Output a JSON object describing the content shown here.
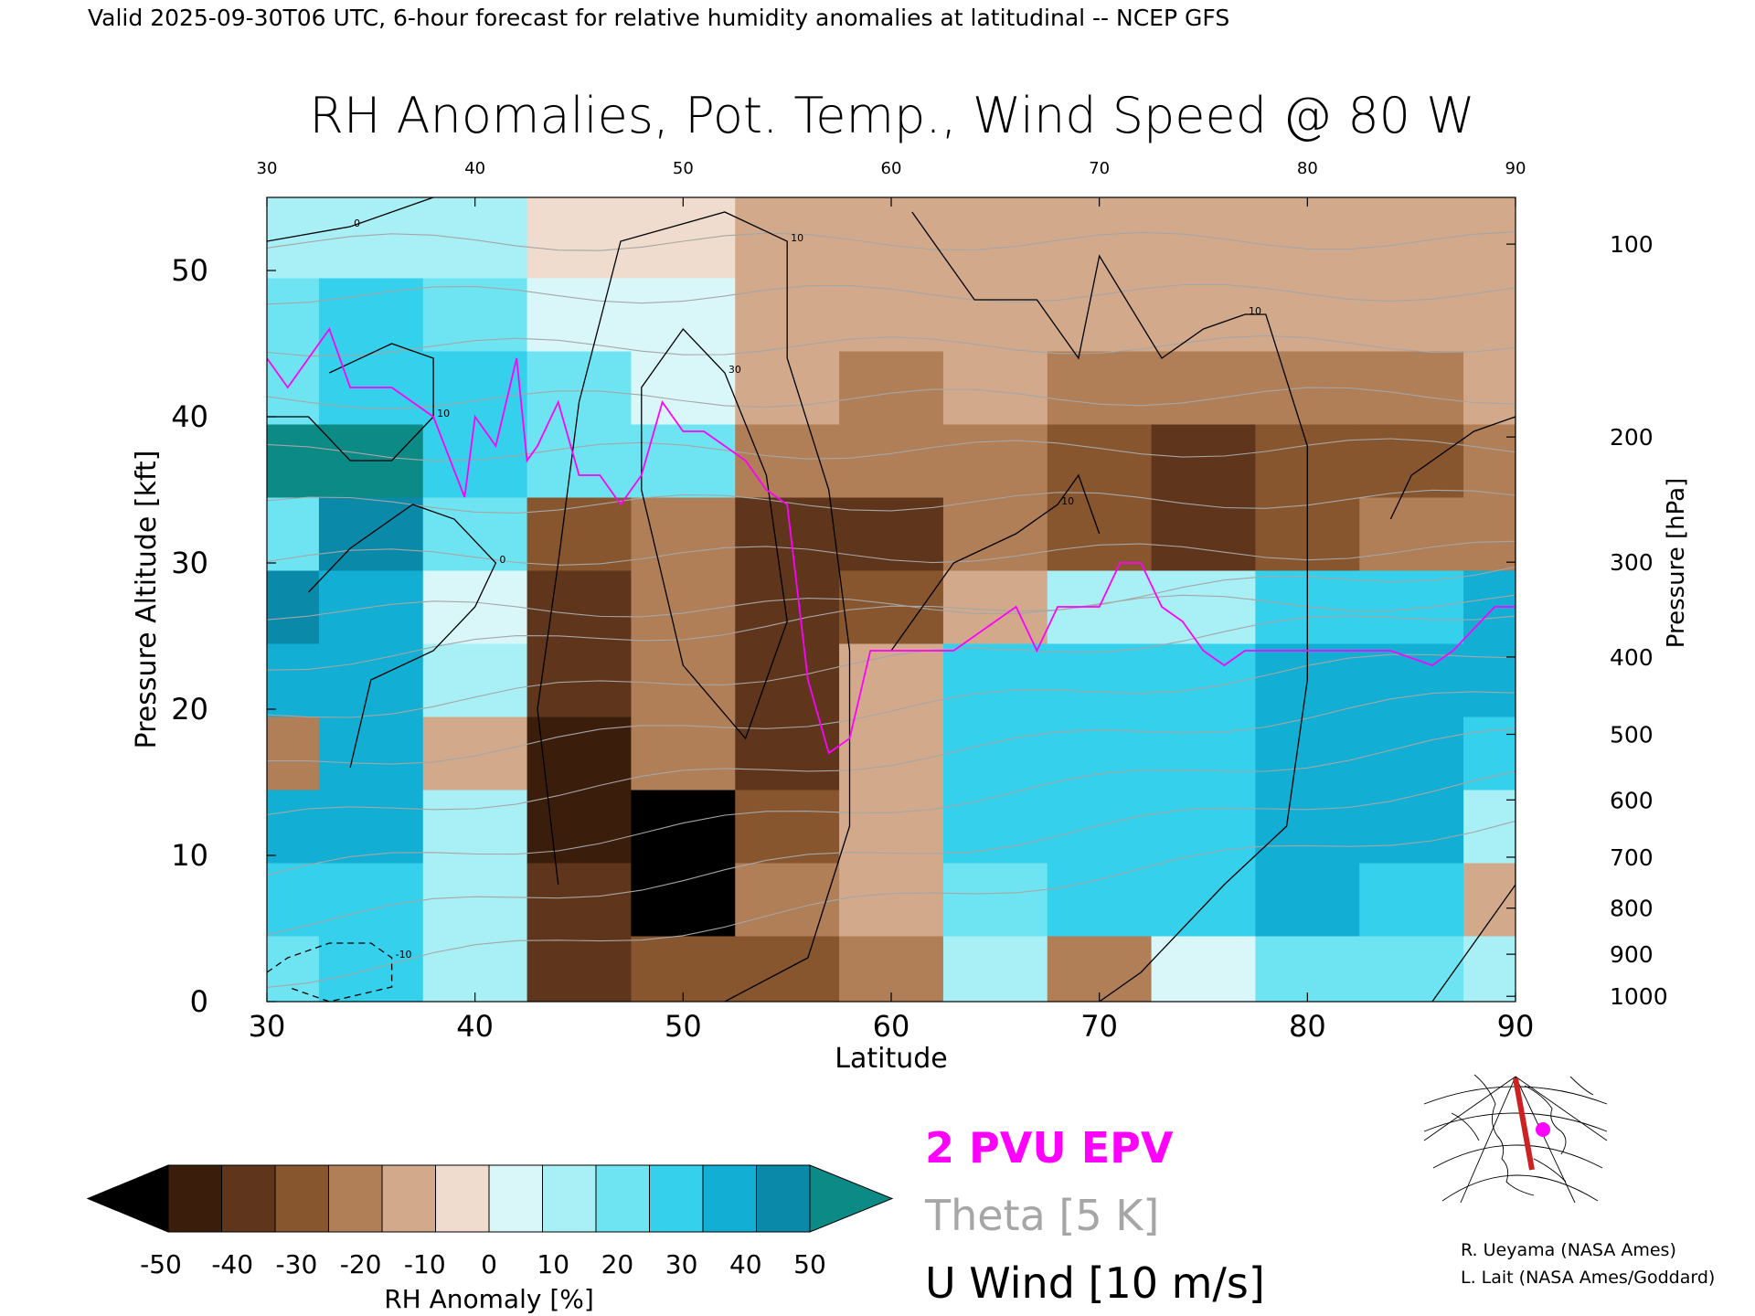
{
  "header": {
    "valid_line": "Valid 2025-09-30T06 UTC, 6-hour forecast for relative humidity anomalies at latitudinal -- NCEP GFS",
    "title": "RH Anomalies, Pot. Temp., Wind Speed @ 80 W"
  },
  "chart_data": {
    "type": "heatmap",
    "title": "RH Anomalies, Pot. Temp., Wind Speed @ 80 W",
    "xlabel": "Latitude",
    "ylabel_left": "Pressure Altitude [kft]",
    "ylabel_right": "Pressure [hPa]",
    "xlim": [
      30,
      90
    ],
    "ylim": [
      0,
      55
    ],
    "x_ticks": [
      "30",
      "40",
      "50",
      "60",
      "70",
      "80",
      "90"
    ],
    "x_ticks_top": [
      "30",
      "40",
      "50",
      "60",
      "70",
      "80",
      "90"
    ],
    "y_ticks": [
      "0",
      "10",
      "20",
      "30",
      "40",
      "50"
    ],
    "pressure_ticks": [
      {
        "label": "100",
        "hpa": 100
      },
      {
        "label": "200",
        "hpa": 200
      },
      {
        "label": "300",
        "hpa": 300
      },
      {
        "label": "400",
        "hpa": 400
      },
      {
        "label": "500",
        "hpa": 500
      },
      {
        "label": "600",
        "hpa": 600
      },
      {
        "label": "700",
        "hpa": 700
      },
      {
        "label": "800",
        "hpa": 800
      },
      {
        "label": "900",
        "hpa": 900
      },
      {
        "label": "1000",
        "hpa": 1000
      }
    ],
    "rh_anomaly_field": {
      "latitudes": [
        30,
        35,
        40,
        45,
        50,
        55,
        60,
        65,
        70,
        75,
        80,
        85,
        90
      ],
      "altitudes_kft": [
        2,
        7,
        12,
        17,
        22,
        27,
        32,
        37,
        42,
        47,
        52
      ],
      "values_percent": [
        [
          20,
          25,
          10,
          -35,
          -30,
          -30,
          -20,
          10,
          -25,
          5,
          20,
          20,
          10
        ],
        [
          30,
          30,
          15,
          -40,
          -55,
          -20,
          -15,
          20,
          25,
          25,
          35,
          30,
          -10
        ],
        [
          35,
          35,
          15,
          -45,
          -60,
          -30,
          -15,
          25,
          25,
          30,
          40,
          35,
          10
        ],
        [
          -20,
          40,
          -10,
          -45,
          -25,
          -40,
          -10,
          30,
          30,
          30,
          40,
          35,
          30
        ],
        [
          40,
          40,
          10,
          -40,
          -25,
          -35,
          -15,
          25,
          30,
          25,
          35,
          35,
          40
        ],
        [
          45,
          40,
          5,
          -40,
          -20,
          -40,
          -30,
          -10,
          15,
          15,
          30,
          25,
          40
        ],
        [
          20,
          45,
          20,
          -30,
          -20,
          -35,
          -35,
          -25,
          -30,
          -35,
          -30,
          -25,
          -20
        ],
        [
          55,
          55,
          30,
          20,
          20,
          -20,
          -25,
          -20,
          -30,
          -35,
          -30,
          -30,
          -25
        ],
        [
          20,
          30,
          25,
          20,
          5,
          -15,
          -20,
          -15,
          -20,
          -20,
          -25,
          -20,
          -15
        ],
        [
          20,
          25,
          20,
          0,
          5,
          -10,
          -15,
          -10,
          -15,
          -10,
          -10,
          -10,
          -10
        ],
        [
          10,
          15,
          10,
          -5,
          -5,
          -10,
          -10,
          -10,
          -10,
          -10,
          -10,
          -10,
          -10
        ]
      ]
    },
    "series": [
      {
        "name": "2 PVU EPV",
        "color": "#ff00ff",
        "points": [
          [
            30,
            44
          ],
          [
            31,
            42
          ],
          [
            33,
            46
          ],
          [
            34,
            42
          ],
          [
            36,
            42
          ],
          [
            37,
            41
          ],
          [
            38,
            40
          ],
          [
            39.5,
            34.5
          ],
          [
            40,
            40
          ],
          [
            41,
            38
          ],
          [
            42,
            44
          ],
          [
            42.5,
            37
          ],
          [
            43,
            38
          ],
          [
            44,
            41
          ],
          [
            45,
            36
          ],
          [
            46,
            36
          ],
          [
            47,
            34
          ],
          [
            48,
            36
          ],
          [
            49,
            41
          ],
          [
            50,
            39
          ],
          [
            51,
            39
          ],
          [
            52,
            38
          ],
          [
            53,
            37
          ],
          [
            54,
            35
          ],
          [
            55,
            34
          ],
          [
            56,
            22
          ],
          [
            57,
            17
          ],
          [
            58,
            18
          ],
          [
            59,
            24
          ],
          [
            61,
            24
          ],
          [
            63,
            24
          ],
          [
            65,
            26
          ],
          [
            66,
            27
          ],
          [
            67,
            24
          ],
          [
            68,
            27
          ],
          [
            69,
            27
          ],
          [
            70,
            27
          ],
          [
            71,
            30
          ],
          [
            72,
            30
          ],
          [
            73,
            27
          ],
          [
            74,
            26
          ],
          [
            75,
            24
          ],
          [
            76,
            23
          ],
          [
            77,
            24
          ],
          [
            78,
            24
          ],
          [
            80,
            24
          ],
          [
            82,
            24
          ],
          [
            84,
            24
          ],
          [
            86,
            23
          ],
          [
            87,
            24
          ],
          [
            89,
            27
          ],
          [
            90,
            27
          ]
        ]
      },
      {
        "name": "U Wind [10 m/s]",
        "color": "#000000",
        "contours": [
          {
            "label": "10",
            "points": [
              [
                44,
                8
              ],
              [
                43,
                20
              ],
              [
                44,
                30
              ],
              [
                45,
                41
              ],
              [
                47,
                52
              ],
              [
                52,
                54
              ],
              [
                55,
                52
              ],
              [
                55,
                44
              ],
              [
                57,
                35
              ],
              [
                58,
                24
              ],
              [
                58,
                12
              ],
              [
                56,
                3
              ],
              [
                52,
                0
              ]
            ]
          },
          {
            "label": "30",
            "points": [
              [
                49,
                29
              ],
              [
                50,
                23
              ],
              [
                53,
                18
              ],
              [
                55,
                26
              ],
              [
                54,
                36
              ],
              [
                52,
                43
              ],
              [
                50,
                46
              ],
              [
                48,
                42
              ],
              [
                48,
                35
              ],
              [
                49,
                29
              ]
            ]
          },
          {
            "label": "10",
            "points": [
              [
                61,
                54
              ],
              [
                62,
                52
              ],
              [
                64,
                48
              ],
              [
                67,
                48
              ],
              [
                69,
                44
              ],
              [
                70,
                51
              ],
              [
                73,
                44
              ],
              [
                75,
                46
              ],
              [
                77,
                47
              ],
              [
                78,
                47
              ],
              [
                80,
                38
              ],
              [
                80,
                22
              ],
              [
                79,
                12
              ],
              [
                76,
                8
              ],
              [
                72,
                2
              ],
              [
                70,
                0
              ]
            ]
          },
          {
            "label": "10",
            "points": [
              [
                60,
                24
              ],
              [
                63,
                30
              ],
              [
                66,
                32
              ],
              [
                68,
                34
              ],
              [
                69,
                36
              ],
              [
                70,
                32
              ]
            ]
          },
          {
            "label": "10",
            "points": [
              [
                84,
                33
              ],
              [
                85,
                36
              ],
              [
                88,
                39
              ],
              [
                90,
                40
              ],
              [
                90,
                8
              ],
              [
                88,
                4
              ],
              [
                86,
                0
              ]
            ]
          },
          {
            "label": "0",
            "points": [
              [
                30,
                52
              ],
              [
                34,
                53
              ],
              [
                38,
                55
              ]
            ]
          },
          {
            "label": "10",
            "points": [
              [
                30,
                40
              ],
              [
                32,
                40
              ],
              [
                34,
                37
              ],
              [
                36,
                37
              ],
              [
                38,
                40
              ],
              [
                38,
                44
              ],
              [
                36,
                45
              ],
              [
                33,
                43
              ]
            ]
          },
          {
            "label": "0",
            "points": [
              [
                34,
                16
              ],
              [
                35,
                22
              ],
              [
                38,
                24
              ],
              [
                40,
                27
              ],
              [
                41,
                30
              ],
              [
                39,
                33
              ],
              [
                37,
                34
              ],
              [
                34,
                31
              ],
              [
                32,
                28
              ]
            ]
          },
          {
            "label": "-10",
            "points": [
              [
                30,
                2
              ],
              [
                31,
                3
              ],
              [
                33,
                4
              ],
              [
                35,
                4
              ],
              [
                36,
                3
              ],
              [
                36,
                1
              ],
              [
                33,
                0
              ],
              [
                31,
                1
              ]
            ],
            "dashed": true
          }
        ]
      },
      {
        "name": "Theta [5 K]",
        "color": "#a6a6a6",
        "levels_K": [
          280,
          290,
          300,
          310,
          320,
          330,
          340,
          350,
          360,
          370,
          380,
          390,
          400,
          410,
          420
        ]
      }
    ],
    "colorbar": {
      "label": "RH Anomaly [%]",
      "ticks": [
        "-50",
        "-40",
        "-30",
        "-20",
        "-10",
        "0",
        "10",
        "20",
        "30",
        "40",
        "50"
      ],
      "colors": {
        "below": "#000000",
        "bins": [
          "#3b1d0c",
          "#5f361c",
          "#87562f",
          "#b07e57",
          "#d2aa8b",
          "#efdcce",
          "#d9f7f9",
          "#a9f0f6",
          "#6ee4f2",
          "#34d0ec",
          "#12aed3",
          "#0a89a8"
        ],
        "above": "#0b8a86"
      }
    },
    "legend": [
      {
        "label": "2 PVU EPV",
        "color": "#ff00ff"
      },
      {
        "label": "Theta [5 K]",
        "color": "#a6a6a6"
      },
      {
        "label": "U Wind [10 m/s]",
        "color": "#000000"
      }
    ],
    "grid": false
  },
  "inset_map": {
    "marker_color": "#ff00ff",
    "line_color": "#cc2222"
  },
  "credits": {
    "line1": "R. Ueyama (NASA Ames)",
    "line2": "L. Lait (NASA Ames/Goddard)"
  }
}
